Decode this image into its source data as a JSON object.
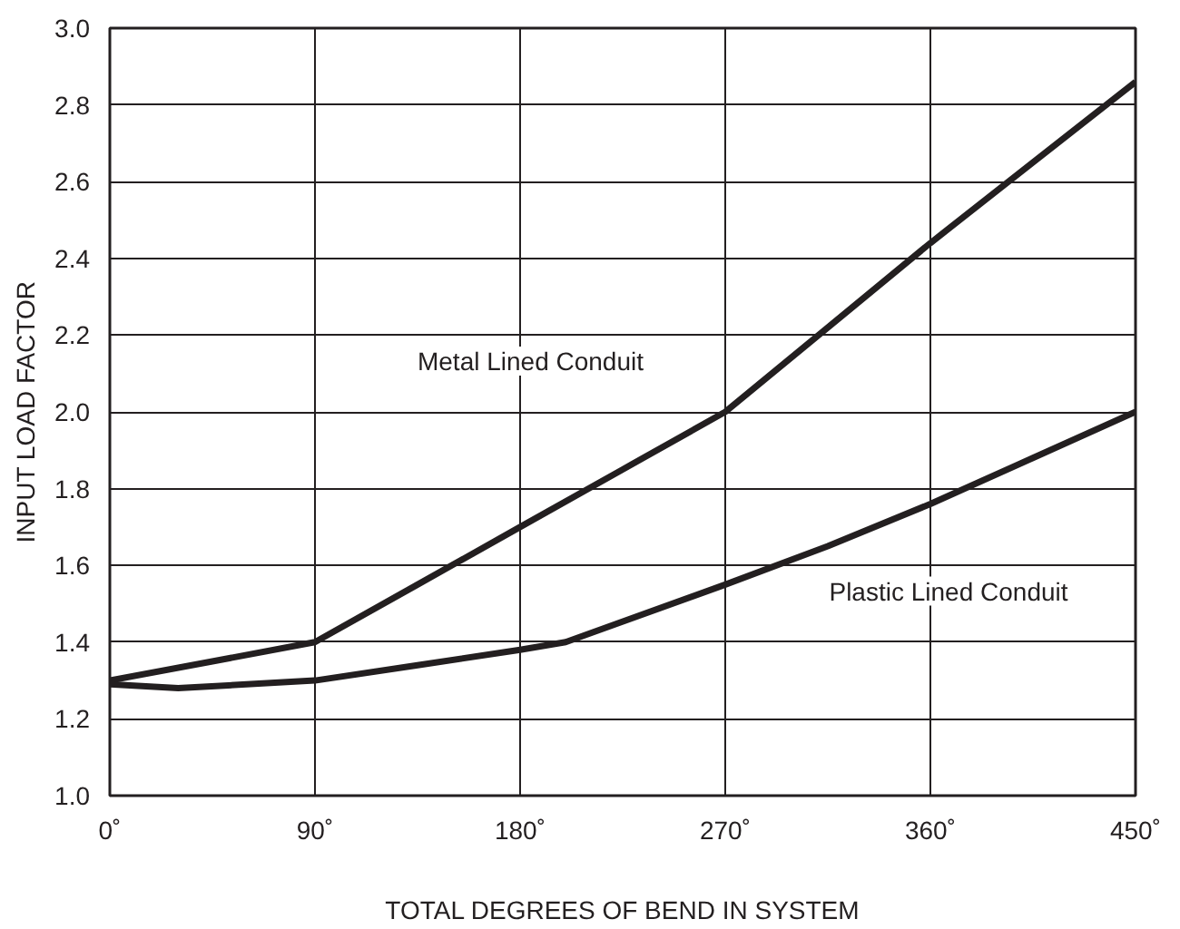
{
  "chart_data": {
    "type": "line",
    "xlabel": "TOTAL DEGREES OF BEND IN SYSTEM",
    "ylabel": "INPUT LOAD FACTOR",
    "xlim": [
      0,
      450
    ],
    "ylim": [
      1.0,
      3.0
    ],
    "xticks": [
      {
        "value": 0,
        "label": "0˚"
      },
      {
        "value": 90,
        "label": "90˚"
      },
      {
        "value": 180,
        "label": "180˚"
      },
      {
        "value": 270,
        "label": "270˚"
      },
      {
        "value": 360,
        "label": "360˚"
      },
      {
        "value": 450,
        "label": "450˚"
      }
    ],
    "yticks": [
      {
        "value": 1.0,
        "label": "1.0"
      },
      {
        "value": 1.2,
        "label": "1.2"
      },
      {
        "value": 1.4,
        "label": "1.4"
      },
      {
        "value": 1.6,
        "label": "1.6"
      },
      {
        "value": 1.8,
        "label": "1.8"
      },
      {
        "value": 2.0,
        "label": "2.0"
      },
      {
        "value": 2.2,
        "label": "2.2"
      },
      {
        "value": 2.4,
        "label": "2.4"
      },
      {
        "value": 2.6,
        "label": "2.6"
      },
      {
        "value": 2.8,
        "label": "2.8"
      },
      {
        "value": 3.0,
        "label": "3.0"
      }
    ],
    "grid": true,
    "marker": "none",
    "line_style": "solid",
    "series": [
      {
        "name": "Metal Lined Conduit",
        "color": "#231f20",
        "x": [
          0,
          45,
          90,
          135,
          180,
          225,
          270,
          315,
          360,
          405,
          450
        ],
        "values": [
          1.3,
          1.35,
          1.4,
          1.55,
          1.7,
          1.85,
          2.0,
          2.22,
          2.44,
          2.65,
          2.86
        ]
      },
      {
        "name": "Plastic Lined Conduit",
        "color": "#231f20",
        "x": [
          0,
          30,
          90,
          135,
          180,
          200,
          270,
          315,
          360,
          405,
          450
        ],
        "values": [
          1.29,
          1.28,
          1.3,
          1.34,
          1.38,
          1.4,
          1.55,
          1.65,
          1.76,
          1.88,
          2.0
        ]
      }
    ]
  }
}
